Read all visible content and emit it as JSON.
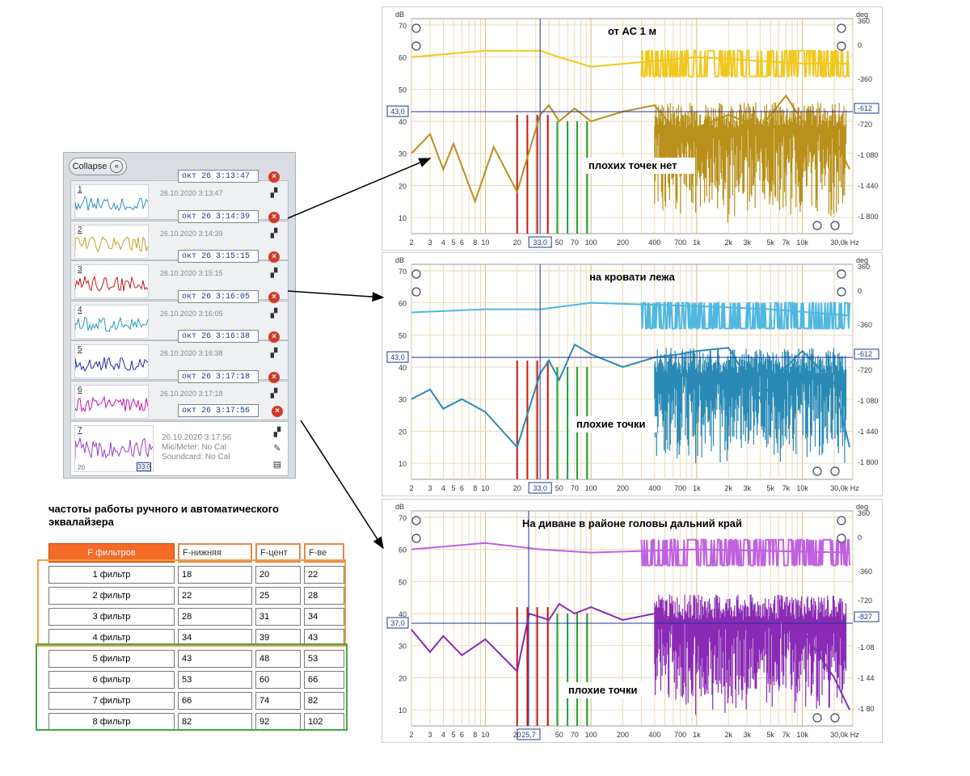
{
  "measurements_panel": {
    "collapse_label": "Collapse",
    "measurements": [
      {
        "num": "1",
        "name": "окт 26 3:13:47",
        "date": "26.10.2020 3:13:47",
        "color": "#2f8fc4"
      },
      {
        "num": "2",
        "name": "окт 26 3:14:39",
        "date": "26.10.2020 3:14:39",
        "color": "#c8a020"
      },
      {
        "num": "3",
        "name": "окт 26 3:15:15",
        "date": "26.10.2020 3:15:15",
        "color": "#c01818"
      },
      {
        "num": "4",
        "name": "окт 26 3:16:05",
        "date": "26.10.2020 3:16:05",
        "color": "#2a9ab8"
      },
      {
        "num": "5",
        "name": "окт 26 3:16:38",
        "date": "26.10.2020 3:16:38",
        "color": "#1830a8"
      },
      {
        "num": "6",
        "name": "окт 26 3:17:18",
        "date": "26.10.2020 3:17:18",
        "color": "#c018b0"
      }
    ],
    "last": {
      "num": "7",
      "name": "окт 26 3:17:56",
      "date": "26.10.2020 3:17:56",
      "mic": "Mic/Meter: No Cal",
      "soundcard": "Soundcard: No Cal",
      "color": "#9a40c8",
      "thumb_left_label": "20",
      "thumb_right_label": "33,0"
    }
  },
  "filter_table": {
    "title": "частоты работы ручного и автоматического эквалайзера",
    "headers": [
      "F фильтров",
      "F-нижняя",
      "F-цент",
      "F-ве"
    ],
    "rows": [
      {
        "label": "1 фильтр",
        "low": "18",
        "center": "20",
        "high": "22"
      },
      {
        "label": "2 фильтр",
        "low": "22",
        "center": "25",
        "high": "28"
      },
      {
        "label": "3 фильтр",
        "low": "28",
        "center": "31",
        "high": "34"
      },
      {
        "label": "4 фильтр",
        "low": "34",
        "center": "39",
        "high": "43"
      },
      {
        "label": "5 фильтр",
        "low": "43",
        "center": "48",
        "high": "53"
      },
      {
        "label": "6 фильтр",
        "low": "53",
        "center": "60",
        "high": "66"
      },
      {
        "label": "7 фильтр",
        "low": "66",
        "center": "74",
        "high": "82"
      },
      {
        "label": "8 фильтр",
        "low": "82",
        "center": "92",
        "high": "102"
      }
    ]
  },
  "chart_data": [
    {
      "type": "line",
      "title": "от АС 1 м",
      "annotation": "плохих точек нет",
      "xlabel": "Hz",
      "ylabel": "dB",
      "y2label": "deg",
      "x_scale": "log",
      "xlim": [
        2,
        30000
      ],
      "ylim": [
        5,
        72
      ],
      "x_ticks": [
        "2",
        "3",
        "4",
        "5",
        "6",
        "8",
        "10",
        "20",
        "33,0",
        "50",
        "70",
        "100",
        "200",
        "400",
        "700",
        "1k",
        "2k",
        "3k",
        "5k",
        "7k",
        "10k",
        "30,0k Hz"
      ],
      "y_ticks": [
        10,
        20,
        30,
        40,
        50,
        60,
        70
      ],
      "y2_ticks": [
        "360",
        "0",
        "-360",
        "-612",
        "-720",
        "-1 080",
        "-1 440",
        "-1 800"
      ],
      "cursor_x": "33,0",
      "cursor_y": "43,0",
      "cursor_y2": "-612",
      "magnitude_color": "#b8901a",
      "phase_color": "#f0c81e",
      "magnitude": [
        [
          2,
          30
        ],
        [
          3,
          36
        ],
        [
          4,
          25
        ],
        [
          5,
          33
        ],
        [
          8,
          15
        ],
        [
          12,
          32
        ],
        [
          20,
          18
        ],
        [
          33,
          42
        ],
        [
          40,
          45
        ],
        [
          50,
          40
        ],
        [
          70,
          44
        ],
        [
          100,
          40
        ],
        [
          200,
          43
        ],
        [
          400,
          45
        ],
        [
          700,
          35
        ],
        [
          1000,
          38
        ],
        [
          2000,
          42
        ],
        [
          4000,
          38
        ],
        [
          7000,
          48
        ],
        [
          10000,
          40
        ],
        [
          20000,
          35
        ],
        [
          28000,
          25
        ]
      ],
      "phase": [
        [
          2,
          60
        ],
        [
          10,
          62
        ],
        [
          33,
          62
        ],
        [
          50,
          60
        ],
        [
          100,
          57
        ],
        [
          1000,
          60
        ],
        [
          10000,
          58
        ],
        [
          28000,
          58
        ]
      ]
    },
    {
      "type": "line",
      "title": "на кровати лежа",
      "annotation": "плохие точки",
      "xlabel": "Hz",
      "ylabel": "dB",
      "y2label": "deg",
      "x_scale": "log",
      "xlim": [
        2,
        30000
      ],
      "ylim": [
        5,
        72
      ],
      "x_ticks": [
        "2",
        "3",
        "4",
        "5",
        "6",
        "8",
        "10",
        "20",
        "33,0",
        "50",
        "70",
        "100",
        "200",
        "400",
        "700",
        "1k",
        "2k",
        "3k",
        "5k",
        "7k",
        "10k",
        "30,0k Hz"
      ],
      "y_ticks": [
        10,
        20,
        30,
        40,
        50,
        60,
        70
      ],
      "y2_ticks": [
        "360",
        "0",
        "-360",
        "-612",
        "-720",
        "-1 080",
        "-1 440",
        "-1 800"
      ],
      "cursor_x": "33,0",
      "cursor_y": "43,0",
      "cursor_y2": "-612",
      "magnitude_color": "#2a8ab5",
      "phase_color": "#50b8e0",
      "magnitude": [
        [
          2,
          30
        ],
        [
          3,
          33
        ],
        [
          4,
          27
        ],
        [
          6,
          30
        ],
        [
          10,
          26
        ],
        [
          20,
          15
        ],
        [
          33,
          38
        ],
        [
          40,
          42
        ],
        [
          50,
          36
        ],
        [
          70,
          47
        ],
        [
          100,
          44
        ],
        [
          200,
          40
        ],
        [
          400,
          43
        ],
        [
          700,
          44
        ],
        [
          1000,
          45
        ],
        [
          2000,
          46
        ],
        [
          4000,
          30
        ],
        [
          7000,
          40
        ],
        [
          10000,
          45
        ],
        [
          20000,
          35
        ],
        [
          28000,
          15
        ]
      ],
      "phase": [
        [
          2,
          57
        ],
        [
          10,
          58
        ],
        [
          33,
          58
        ],
        [
          100,
          60
        ],
        [
          1000,
          59
        ],
        [
          5000,
          58
        ],
        [
          28000,
          56
        ]
      ]
    },
    {
      "type": "line",
      "title": "На диване в районе головы дальний край",
      "annotation": "плохие точки",
      "xlabel": "Hz",
      "ylabel": "dB",
      "y2label": "deg",
      "x_scale": "log",
      "xlim": [
        2,
        30000
      ],
      "ylim": [
        5,
        72
      ],
      "x_ticks": [
        "2",
        "3",
        "4",
        "5",
        "6",
        "8",
        "10",
        "20",
        "25,7",
        "50",
        "70",
        "100",
        "200",
        "400",
        "700",
        "1k",
        "2k",
        "3k",
        "5k",
        "7k",
        "10k",
        "30,0k Hz"
      ],
      "y_ticks": [
        10,
        20,
        30,
        40,
        50,
        60,
        70
      ],
      "y2_ticks": [
        "360",
        "0",
        "-360",
        "-720",
        "-827",
        "-1 08",
        "-1 44",
        "-1 80"
      ],
      "cursor_x": "25,7",
      "cursor_y": "37,0",
      "cursor_y2": "-827",
      "magnitude_color": "#8a2ab5",
      "phase_color": "#c060e0",
      "magnitude": [
        [
          2,
          35
        ],
        [
          3,
          28
        ],
        [
          4,
          33
        ],
        [
          6,
          27
        ],
        [
          10,
          32
        ],
        [
          20,
          22
        ],
        [
          26,
          40
        ],
        [
          40,
          38
        ],
        [
          50,
          43
        ],
        [
          70,
          40
        ],
        [
          100,
          42
        ],
        [
          200,
          38
        ],
        [
          400,
          40
        ],
        [
          700,
          38
        ],
        [
          1000,
          35
        ],
        [
          2000,
          38
        ],
        [
          4000,
          36
        ],
        [
          7000,
          38
        ],
        [
          10000,
          35
        ],
        [
          20000,
          20
        ],
        [
          28000,
          10
        ]
      ],
      "phase": [
        [
          2,
          60
        ],
        [
          10,
          62
        ],
        [
          33,
          60
        ],
        [
          100,
          59
        ],
        [
          1000,
          60
        ],
        [
          28000,
          59
        ]
      ]
    }
  ]
}
